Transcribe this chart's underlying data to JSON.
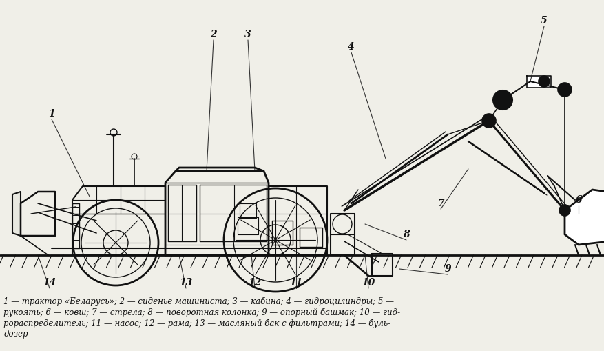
{
  "fig_width": 8.77,
  "fig_height": 5.09,
  "dpi": 100,
  "bg_color": "#f0efe8",
  "line_color": "#111111",
  "caption_line1": "1 — трактор «Беларусь»; 2 — сиденье машиниста; 3 — кабина; 4 — гидроцилиндры; 5 —",
  "caption_line2": "рукоять; 6 — ковш; 7 — стрела; 8 — поворотная колонка; 9 — опорный башмак; 10 — гид-",
  "caption_line3": "рораспределитель; 11 — насос; 12 — рама; 13 — масляный бак с фильтрами; 14 — буль-",
  "caption_line4": "дозер"
}
